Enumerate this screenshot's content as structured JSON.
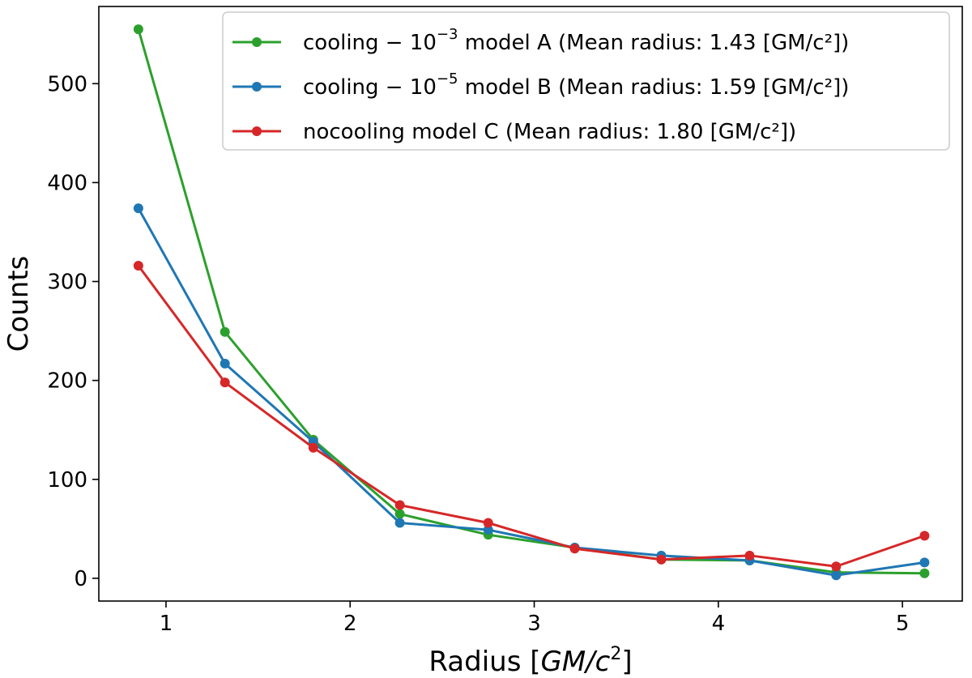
{
  "chart_data": {
    "type": "line",
    "title": "",
    "xlabel": "Radius [GM/c²]",
    "xlabel_parts": {
      "prefix": "Radius [",
      "italic": "GM/c",
      "sup": "2",
      "suffix": "]"
    },
    "ylabel": "Counts",
    "xlim": [
      0.635,
      5.325
    ],
    "ylim": [
      -23,
      578
    ],
    "xticks": [
      1,
      2,
      3,
      4,
      5
    ],
    "yticks": [
      0,
      100,
      200,
      300,
      400,
      500
    ],
    "grid": false,
    "legend_placement": "top-right",
    "x": [
      0.85,
      1.32,
      1.8,
      2.27,
      2.75,
      3.22,
      3.69,
      4.17,
      4.64,
      5.12
    ],
    "series": [
      {
        "name": "cooling − 10⁻³ model A (Mean radius: 1.43 [GM/c²])",
        "legend_parts": {
          "pre": "cooling − 10",
          "sup": "−3",
          "post": " model A (Mean radius: 1.43 [GM/c²])"
        },
        "color": "#2ca02c",
        "values": [
          555,
          249,
          140,
          65,
          44,
          31,
          19,
          18,
          6,
          5
        ]
      },
      {
        "name": "cooling − 10⁻⁵ model B (Mean radius: 1.59 [GM/c²])",
        "legend_parts": {
          "pre": "cooling − 10",
          "sup": "−5",
          "post": " model B (Mean radius: 1.59 [GM/c²])"
        },
        "color": "#1f77b4",
        "values": [
          374,
          217,
          138,
          56,
          49,
          31,
          23,
          18,
          3,
          16
        ]
      },
      {
        "name": "nocooling model C (Mean radius: 1.80 [GM/c²])",
        "legend_parts": {
          "pre": "nocooling model C (Mean radius: 1.80 [GM/c²])",
          "sup": "",
          "post": ""
        },
        "color": "#d62728",
        "values": [
          316,
          198,
          132,
          74,
          56,
          30,
          19,
          23,
          12,
          43
        ]
      }
    ]
  }
}
